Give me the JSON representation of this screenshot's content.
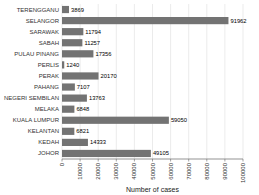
{
  "chart_data": {
    "type": "bar",
    "orientation": "horizontal",
    "categories": [
      "JOHOR",
      "KEDAH",
      "KELANTAN",
      "KUALA LUMPUR",
      "MELAKA",
      "NEGERI SEMBILAN",
      "PAHANG",
      "PERAK",
      "PERLIS",
      "PULAU PINANG",
      "SABAH",
      "SARAWAK",
      "SELANGOR",
      "TERENGGANU"
    ],
    "values": [
      49105,
      14333,
      6821,
      59050,
      6848,
      13763,
      7107,
      20170,
      1240,
      17356,
      11257,
      11794,
      91962,
      3869
    ],
    "color": "#737373",
    "xlabel": "Number of cases",
    "xlim": [
      0,
      100000
    ],
    "xticks": [
      0,
      10000,
      20000,
      30000,
      40000,
      50000,
      60000,
      70000,
      80000,
      90000,
      100000
    ],
    "grid": true,
    "data_labels": true
  }
}
